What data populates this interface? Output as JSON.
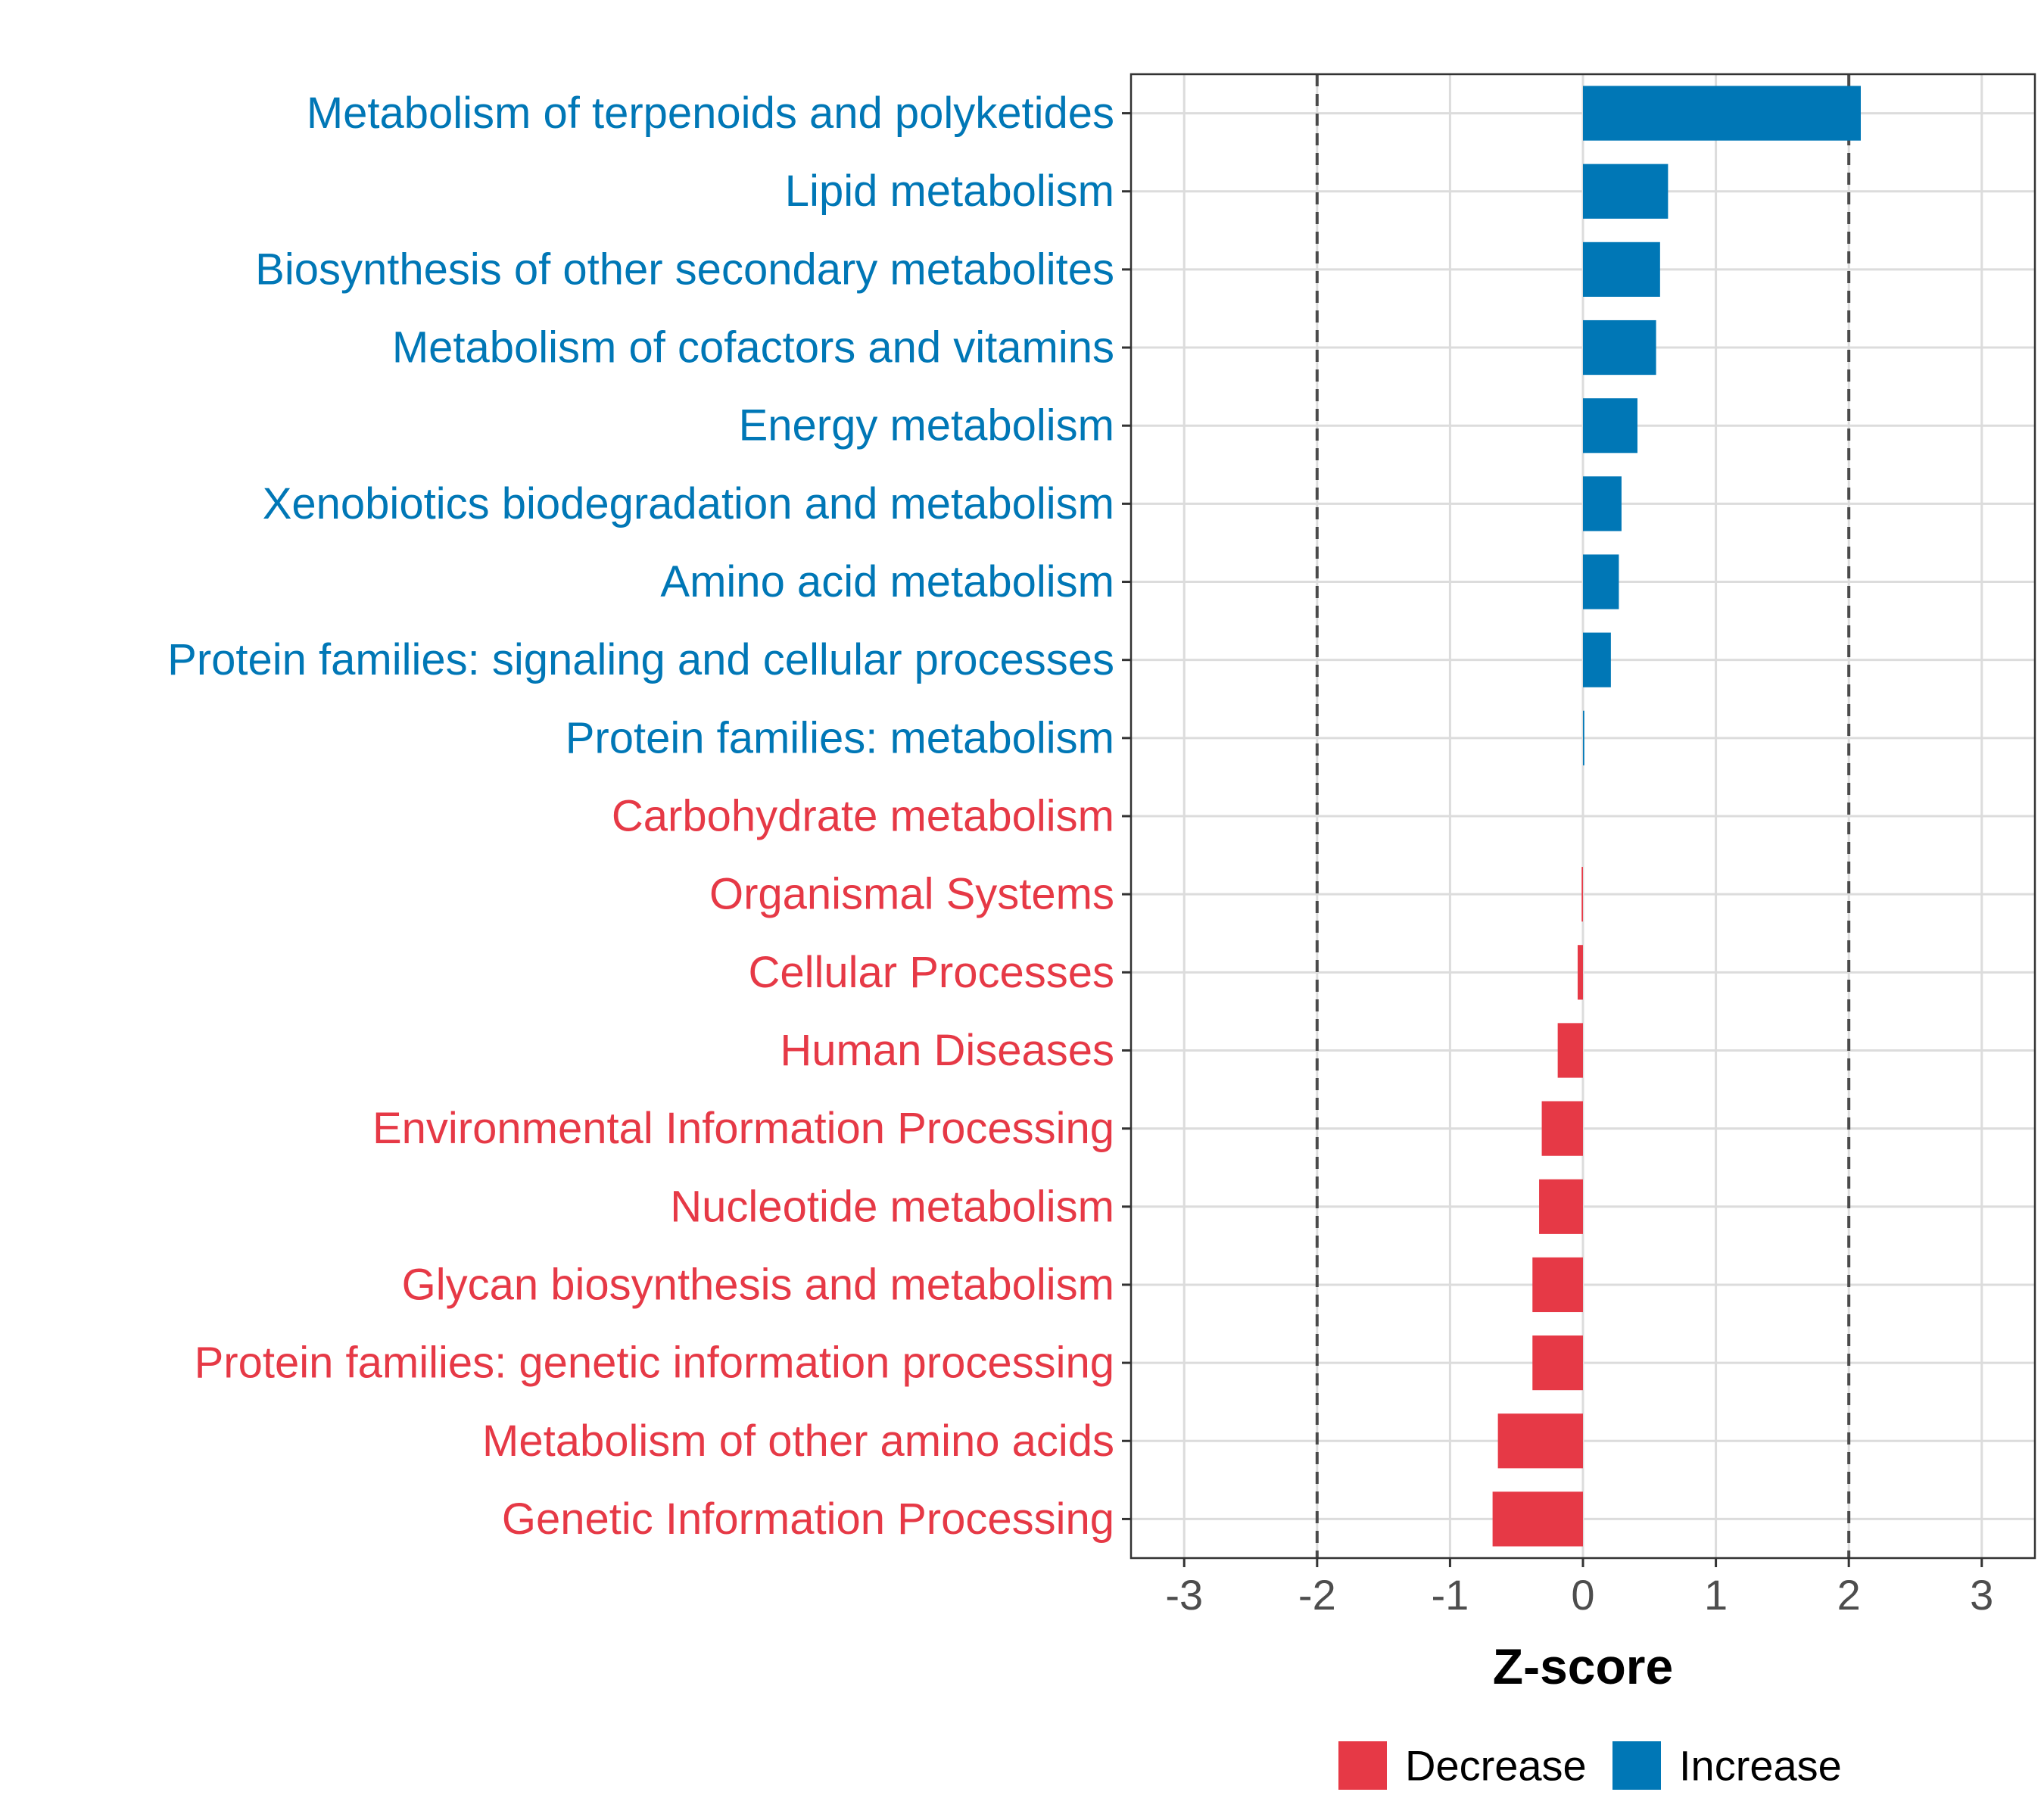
{
  "chart_data": {
    "type": "bar",
    "orientation": "horizontal",
    "title": "",
    "xlabel": "Z-score",
    "ylabel": "",
    "xlim": [
      -3.4,
      3.4
    ],
    "xticks": [
      -3,
      -2,
      -1,
      0,
      1,
      2,
      3
    ],
    "xtick_labels": [
      "-3",
      "-2",
      "-1",
      "0",
      "1",
      "2",
      "3"
    ],
    "reference_lines": [
      -2,
      2
    ],
    "grid": true,
    "legend_position": "bottom",
    "colors": {
      "Decrease": "#e63946",
      "Increase": "#0077b6"
    },
    "legend": [
      {
        "label": "Decrease",
        "color": "#e63946"
      },
      {
        "label": "Increase",
        "color": "#0077b6"
      }
    ],
    "categories": [
      "Metabolism of terpenoids and polyketides",
      "Lipid metabolism",
      "Biosynthesis of other secondary metabolites",
      "Metabolism of cofactors and vitamins",
      "Energy metabolism",
      "Xenobiotics biodegradation and metabolism",
      "Amino acid metabolism",
      "Protein families: signaling and cellular processes",
      "Protein families: metabolism",
      "Carbohydrate metabolism",
      "Organismal Systems",
      "Cellular Processes",
      "Human Diseases",
      "Environmental Information Processing",
      "Nucleotide metabolism",
      "Glycan biosynthesis and metabolism",
      "Protein families: genetic information processing",
      "Metabolism of other amino acids",
      "Genetic Information Processing"
    ],
    "values": [
      2.09,
      0.64,
      0.58,
      0.55,
      0.41,
      0.29,
      0.27,
      0.21,
      0.01,
      0.0,
      -0.01,
      -0.04,
      -0.19,
      -0.31,
      -0.33,
      -0.38,
      -0.38,
      -0.64,
      -0.68
    ],
    "groups": [
      "Increase",
      "Increase",
      "Increase",
      "Increase",
      "Increase",
      "Increase",
      "Increase",
      "Increase",
      "Increase",
      "Decrease",
      "Decrease",
      "Decrease",
      "Decrease",
      "Decrease",
      "Decrease",
      "Decrease",
      "Decrease",
      "Decrease",
      "Decrease"
    ]
  }
}
